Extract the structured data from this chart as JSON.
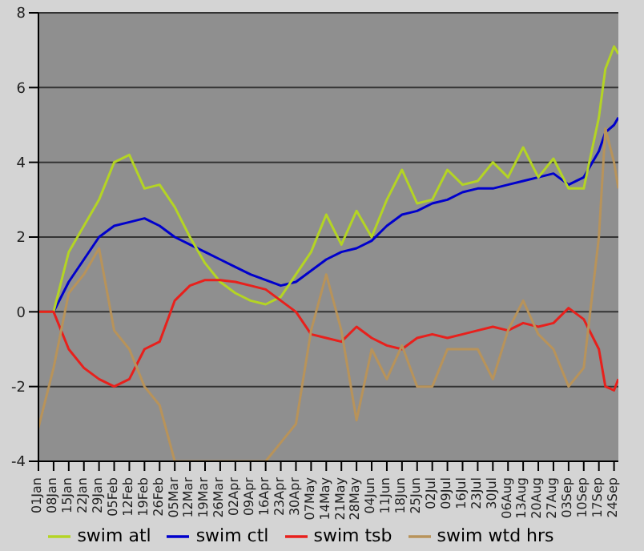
{
  "chart_data": {
    "type": "line",
    "x": [
      "--01-01",
      "--01-08",
      "--01-15",
      "--01-22",
      "--01-29",
      "--02-05",
      "--02-12",
      "--02-19",
      "--02-26",
      "--03-05",
      "--03-12",
      "--03-19",
      "--03-26",
      "--04-02",
      "--04-09",
      "--04-16",
      "--04-23",
      "--04-30",
      "--05-07",
      "--05-14",
      "--05-21",
      "--05-28",
      "--06-04",
      "--06-11",
      "--06-18",
      "--06-25",
      "--07-02",
      "--07-09",
      "--07-16",
      "--07-23",
      "--07-30",
      "--08-06",
      "--08-13",
      "--08-20",
      "--08-27",
      "--09-03",
      "--09-10",
      "--09-17",
      "--09-20",
      "--09-24",
      "--09-26"
    ],
    "series": [
      {
        "name": "swim ctl",
        "color": "#0000cc",
        "values": [
          0,
          0,
          0.8,
          1.4,
          2.0,
          2.3,
          2.4,
          2.5,
          2.3,
          2.0,
          1.8,
          1.6,
          1.4,
          1.2,
          1.0,
          0.85,
          0.7,
          0.8,
          1.1,
          1.4,
          1.6,
          1.7,
          1.9,
          2.3,
          2.6,
          2.7,
          2.9,
          3.0,
          3.2,
          3.3,
          3.3,
          3.4,
          3.5,
          3.6,
          3.7,
          3.4,
          3.6,
          4.3,
          4.8,
          5.0,
          5.2
        ]
      },
      {
        "name": "swim atl",
        "color": "#b4d424",
        "values": [
          0,
          0,
          1.6,
          2.3,
          3.0,
          4.0,
          4.2,
          3.3,
          3.4,
          2.8,
          2.0,
          1.3,
          0.8,
          0.5,
          0.3,
          0.2,
          0.4,
          1.0,
          1.6,
          2.6,
          1.8,
          2.7,
          2.0,
          3.0,
          3.8,
          2.9,
          3.0,
          3.8,
          3.4,
          3.5,
          4.0,
          3.6,
          4.4,
          3.6,
          4.1,
          3.3,
          3.3,
          5.2,
          6.5,
          7.1,
          6.9
        ]
      },
      {
        "name": "swim tsb",
        "color": "#e8201c",
        "values": [
          0,
          0,
          -1.0,
          -1.5,
          -1.8,
          -2.0,
          -1.8,
          -1.0,
          -0.8,
          0.3,
          0.7,
          0.85,
          0.85,
          0.8,
          0.7,
          0.6,
          0.3,
          0,
          -0.6,
          -0.7,
          -0.8,
          -0.4,
          -0.7,
          -0.9,
          -1.0,
          -0.7,
          -0.6,
          -0.7,
          -0.6,
          -0.5,
          -0.4,
          -0.5,
          -0.3,
          -0.4,
          -0.3,
          0.1,
          -0.2,
          -1.0,
          -2.0,
          -2.1,
          -1.8
        ]
      },
      {
        "name": "swim wtd hrs",
        "color": "#b8935a",
        "values": [
          -3.1,
          -1.5,
          0.5,
          1.0,
          1.7,
          -0.5,
          -1.0,
          -2.0,
          -2.5,
          -4,
          -4,
          -4,
          -4,
          -4,
          -4,
          -4,
          -3.5,
          -3.0,
          -0.5,
          1.0,
          -0.5,
          -2.9,
          -1.0,
          -1.8,
          -0.9,
          -2.0,
          -2.0,
          -1.0,
          -1.0,
          -1.0,
          -1.8,
          -0.5,
          0.3,
          -0.6,
          -1.0,
          -2.0,
          -1.5,
          2.0,
          4.9,
          4.0,
          3.3
        ]
      }
    ],
    "xlim": [
      "--01-01",
      "--09-26"
    ],
    "xticks": [
      {
        "value": "--01-01",
        "label": "01Jan"
      },
      {
        "value": "--01-08",
        "label": "08Jan"
      },
      {
        "value": "--01-15",
        "label": "15Jan"
      },
      {
        "value": "--01-22",
        "label": "22Jan"
      },
      {
        "value": "--01-29",
        "label": "29Jan"
      },
      {
        "value": "--02-05",
        "label": "05Feb"
      },
      {
        "value": "--02-12",
        "label": "12Feb"
      },
      {
        "value": "--02-19",
        "label": "19Feb"
      },
      {
        "value": "--02-26",
        "label": "26Feb"
      },
      {
        "value": "--03-05",
        "label": "05Mar"
      },
      {
        "value": "--03-12",
        "label": "12Mar"
      },
      {
        "value": "--03-19",
        "label": "19Mar"
      },
      {
        "value": "--03-26",
        "label": "26Mar"
      },
      {
        "value": "--04-02",
        "label": "02Apr"
      },
      {
        "value": "--04-09",
        "label": "09Apr"
      },
      {
        "value": "--04-16",
        "label": "16Apr"
      },
      {
        "value": "--04-23",
        "label": "23Apr"
      },
      {
        "value": "--04-30",
        "label": "30Apr"
      },
      {
        "value": "--05-07",
        "label": "07May"
      },
      {
        "value": "--05-14",
        "label": "14May"
      },
      {
        "value": "--05-21",
        "label": "21May"
      },
      {
        "value": "--05-28",
        "label": "28May"
      },
      {
        "value": "--06-04",
        "label": "04Jun"
      },
      {
        "value": "--06-11",
        "label": "11Jun"
      },
      {
        "value": "--06-18",
        "label": "18Jun"
      },
      {
        "value": "--06-25",
        "label": "25Jun"
      },
      {
        "value": "--07-02",
        "label": "02Jul"
      },
      {
        "value": "--07-09",
        "label": "09Jul"
      },
      {
        "value": "--07-16",
        "label": "16Jul"
      },
      {
        "value": "--07-23",
        "label": "23Jul"
      },
      {
        "value": "--07-30",
        "label": "30Jul"
      },
      {
        "value": "--08-06",
        "label": "06Aug"
      },
      {
        "value": "--08-13",
        "label": "13Aug"
      },
      {
        "value": "--08-20",
        "label": "20Aug"
      },
      {
        "value": "--08-27",
        "label": "27Aug"
      },
      {
        "value": "--09-03",
        "label": "03Sep"
      },
      {
        "value": "--09-10",
        "label": "10Sep"
      },
      {
        "value": "--09-17",
        "label": "17Sep"
      },
      {
        "value": "--09-24",
        "label": "24Sep"
      }
    ],
    "ylim": [
      -4,
      8
    ],
    "yticks": [
      -4,
      -2,
      0,
      2,
      4,
      6,
      8
    ],
    "grid": "y",
    "legend": "bottom",
    "marker": "none",
    "line_style": "solid"
  }
}
